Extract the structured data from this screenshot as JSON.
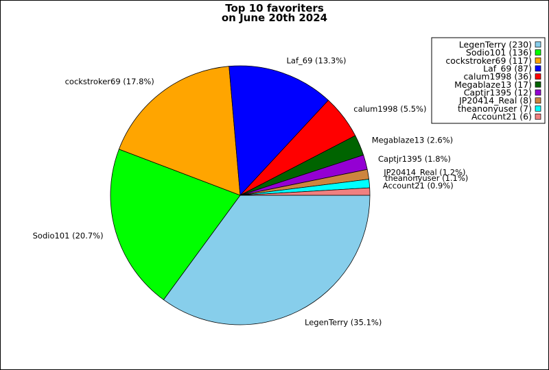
{
  "chart_data": {
    "type": "pie",
    "title": "Top 10 favoriters",
    "subtitle": "on June 20th 2024",
    "legend_position": "top-right",
    "slices": [
      {
        "label": "LegenTerry",
        "value": 230,
        "percent_label": "LegenTerry (35.1%)",
        "legend_label": "LegenTerry (230)",
        "color": "#87CEEB"
      },
      {
        "label": "Sodio101",
        "value": 136,
        "percent_label": "Sodio101 (20.7%)",
        "legend_label": "Sodio101 (136)",
        "color": "#00FF00"
      },
      {
        "label": "cockstroker69",
        "value": 117,
        "percent_label": "cockstroker69 (17.8%)",
        "legend_label": "cockstroker69 (117)",
        "color": "#FFA500"
      },
      {
        "label": "Laf_69",
        "value": 87,
        "percent_label": "Laf_69 (13.3%)",
        "legend_label": "Laf_69 (87)",
        "color": "#0000FF"
      },
      {
        "label": "calum1998",
        "value": 36,
        "percent_label": "calum1998 (5.5%)",
        "legend_label": "calum1998 (36)",
        "color": "#FF0000"
      },
      {
        "label": "Megablaze13",
        "value": 17,
        "percent_label": "Megablaze13 (2.6%)",
        "legend_label": "Megablaze13 (17)",
        "color": "#006400"
      },
      {
        "label": "Captjr1395",
        "value": 12,
        "percent_label": "Captjr1395 (1.8%)",
        "legend_label": "Captjr1395 (12)",
        "color": "#9400D3"
      },
      {
        "label": "JP20414_Real",
        "value": 8,
        "percent_label": "JP20414_Real (1.2%)",
        "legend_label": "JP20414_Real (8)",
        "color": "#CD853F"
      },
      {
        "label": "theanonyuser",
        "value": 7,
        "percent_label": "theanonyuser (1.1%)",
        "legend_label": "theanonyuser (7)",
        "color": "#00FFFF"
      },
      {
        "label": "Account21",
        "value": 6,
        "percent_label": "Account21 (0.9%)",
        "legend_label": "Account21 (6)",
        "color": "#F08080"
      }
    ]
  }
}
